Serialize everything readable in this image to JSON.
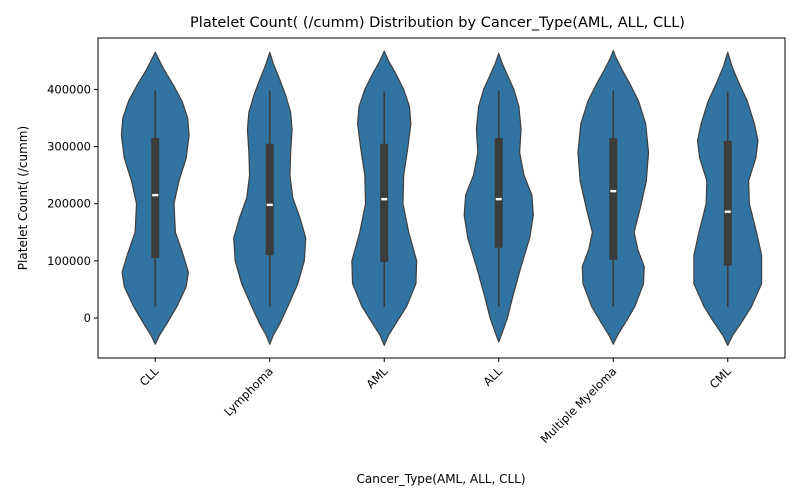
{
  "chart_data": {
    "type": "violin",
    "title": "Platelet Count( (/cumm) Distribution by Cancer_Type(AML, ALL, CLL)",
    "xlabel": "Cancer_Type(AML, ALL, CLL)",
    "ylabel": "Platelet Count( (/cumm)",
    "categories": [
      "CLL",
      "Lymphoma",
      "AML",
      "ALL",
      "Multiple Myeloma",
      "CML"
    ],
    "y_ticks": [
      0,
      100000,
      200000,
      300000,
      400000
    ],
    "y_tick_labels": [
      "0",
      "100000",
      "200000",
      "300000",
      "400000"
    ],
    "ylim": [
      -70000,
      490000
    ],
    "grid": false,
    "violin_color": "#3274a1",
    "box_color": "#3c3c3c",
    "series": [
      {
        "name": "CLL",
        "whisker_low": 20000,
        "q1": 105000,
        "median": 215000,
        "q3": 315000,
        "whisker_high": 398000,
        "profile_y": [
          -46000,
          -30000,
          -10000,
          20000,
          55000,
          80000,
          110000,
          150000,
          200000,
          240000,
          280000,
          320000,
          350000,
          380000,
          410000,
          435000,
          455000,
          465000
        ],
        "profile_w": [
          0.0,
          0.12,
          0.32,
          0.6,
          0.86,
          0.92,
          0.78,
          0.56,
          0.52,
          0.66,
          0.86,
          0.94,
          0.9,
          0.74,
          0.48,
          0.24,
          0.08,
          0.0
        ]
      },
      {
        "name": "Lymphoma",
        "whisker_low": 20000,
        "q1": 110000,
        "median": 198000,
        "q3": 305000,
        "whisker_high": 398000,
        "profile_y": [
          -46000,
          -30000,
          -10000,
          20000,
          60000,
          100000,
          140000,
          175000,
          210000,
          250000,
          290000,
          330000,
          360000,
          390000,
          420000,
          445000,
          465000
        ],
        "profile_w": [
          0.0,
          0.1,
          0.28,
          0.5,
          0.78,
          0.96,
          1.0,
          0.84,
          0.64,
          0.56,
          0.58,
          0.62,
          0.58,
          0.44,
          0.26,
          0.1,
          0.0
        ]
      },
      {
        "name": "AML",
        "whisker_low": 20000,
        "q1": 98000,
        "median": 208000,
        "q3": 305000,
        "whisker_high": 396000,
        "profile_y": [
          -48000,
          -30000,
          -10000,
          20000,
          60000,
          100000,
          150000,
          200000,
          250000,
          300000,
          340000,
          370000,
          400000,
          430000,
          450000,
          467000
        ],
        "profile_w": [
          0.0,
          0.12,
          0.32,
          0.62,
          0.88,
          0.9,
          0.68,
          0.52,
          0.54,
          0.66,
          0.74,
          0.7,
          0.54,
          0.3,
          0.12,
          0.0
        ]
      },
      {
        "name": "ALL",
        "whisker_low": 20000,
        "q1": 123000,
        "median": 208000,
        "q3": 315000,
        "whisker_high": 398000,
        "profile_y": [
          -42000,
          -25000,
          0,
          40000,
          90000,
          140000,
          180000,
          215000,
          250000,
          290000,
          330000,
          370000,
          400000,
          425000,
          445000,
          463000
        ],
        "profile_w": [
          0.0,
          0.1,
          0.24,
          0.4,
          0.62,
          0.86,
          0.96,
          0.92,
          0.7,
          0.58,
          0.62,
          0.56,
          0.42,
          0.24,
          0.1,
          0.0
        ]
      },
      {
        "name": "Multiple Myeloma",
        "whisker_low": 20000,
        "q1": 102000,
        "median": 222000,
        "q3": 315000,
        "whisker_high": 398000,
        "profile_y": [
          -46000,
          -30000,
          -10000,
          20000,
          60000,
          90000,
          120000,
          150000,
          190000,
          240000,
          290000,
          340000,
          380000,
          410000,
          435000,
          455000,
          468000
        ],
        "profile_w": [
          0.0,
          0.12,
          0.32,
          0.6,
          0.84,
          0.86,
          0.68,
          0.58,
          0.74,
          0.92,
          0.98,
          0.9,
          0.7,
          0.46,
          0.24,
          0.08,
          0.0
        ]
      },
      {
        "name": "CML",
        "whisker_low": 20000,
        "q1": 92000,
        "median": 186000,
        "q3": 310000,
        "whisker_high": 396000,
        "profile_y": [
          -48000,
          -30000,
          -10000,
          20000,
          60000,
          110000,
          150000,
          200000,
          240000,
          280000,
          310000,
          340000,
          380000,
          410000,
          440000,
          465000
        ],
        "profile_w": [
          0.0,
          0.14,
          0.36,
          0.66,
          0.94,
          0.94,
          0.8,
          0.6,
          0.58,
          0.78,
          0.84,
          0.74,
          0.54,
          0.32,
          0.12,
          0.0
        ]
      }
    ]
  }
}
